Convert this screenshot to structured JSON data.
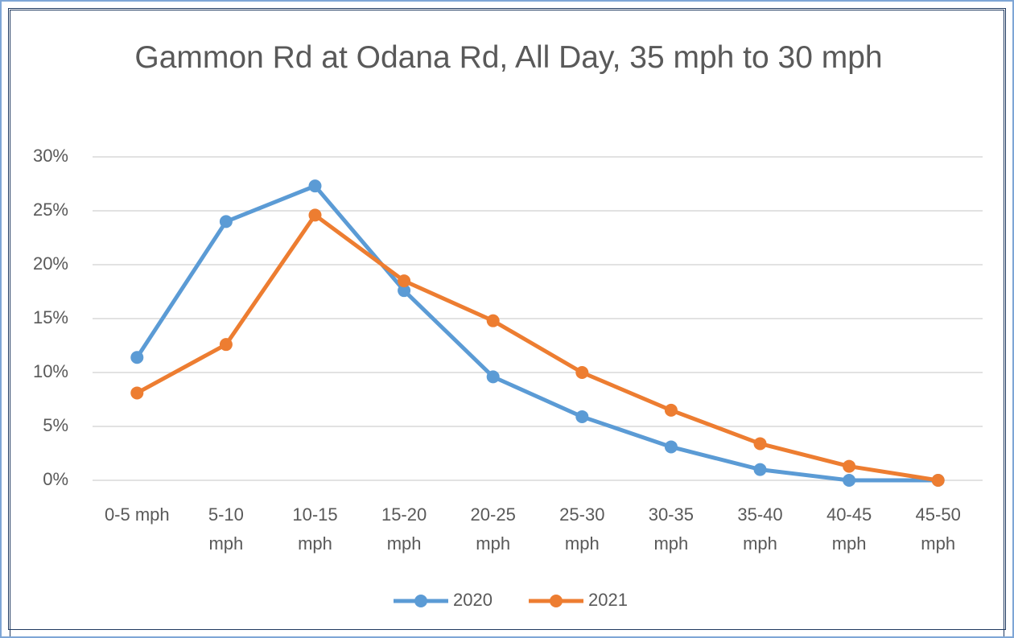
{
  "chart_data": {
    "type": "line",
    "title": "Gammon Rd at Odana Rd, All Day, 35 mph to 30 mph",
    "categories": [
      "0-5 mph",
      "5-10 mph",
      "10-15 mph",
      "15-20 mph",
      "20-25 mph",
      "25-30 mph",
      "30-35 mph",
      "35-40 mph",
      "40-45 mph",
      "45-50 mph"
    ],
    "series": [
      {
        "name": "2020",
        "color": "#5b9bd5",
        "values": [
          11.4,
          24.0,
          27.3,
          17.6,
          9.6,
          5.9,
          3.1,
          1.0,
          0,
          0
        ]
      },
      {
        "name": "2021",
        "color": "#ed7d31",
        "values": [
          8.1,
          12.6,
          24.6,
          18.5,
          14.8,
          10.0,
          6.5,
          3.4,
          1.3,
          0
        ]
      }
    ],
    "ylim": [
      0,
      30
    ],
    "yticks": [
      {
        "value": 0,
        "label": "0%"
      },
      {
        "value": 5,
        "label": "5%"
      },
      {
        "value": 10,
        "label": "10%"
      },
      {
        "value": 15,
        "label": "15%"
      },
      {
        "value": 20,
        "label": "20%"
      },
      {
        "value": 25,
        "label": "25%"
      },
      {
        "value": 30,
        "label": "30%"
      }
    ],
    "grid": true,
    "legend": "bottom"
  }
}
